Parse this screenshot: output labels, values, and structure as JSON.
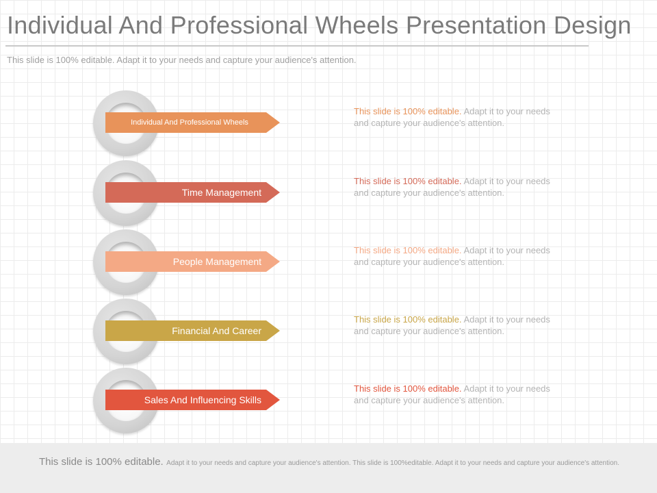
{
  "slide": {
    "title": "Individual And Professional Wheels Presentation Design",
    "subtitle": "This slide is 100% editable. Adapt it to your needs and capture your audience's attention."
  },
  "wheels": [
    {
      "label": "Individual And Professional Wheels",
      "color": "#e8935a",
      "desc_lead": "This slide is 100% editable.",
      "desc_rest": "Adapt it to your needs and capture your audience's attention."
    },
    {
      "label": "Time Management",
      "color": "#d46a58",
      "desc_lead": "This slide is 100% editable.",
      "desc_rest": "Adapt it to your needs and capture your audience's attention."
    },
    {
      "label": "People Management",
      "color": "#f4a985",
      "desc_lead": "This slide is 100% editable.",
      "desc_rest": "Adapt it to your needs and capture your audience's attention."
    },
    {
      "label": "Financial And Career",
      "color": "#c9a648",
      "desc_lead": "This slide is 100% editable.",
      "desc_rest": "Adapt it to your needs and capture your audience's attention."
    },
    {
      "label": "Sales And Influencing  Skills",
      "color": "#e2563e",
      "desc_lead": "This slide is 100% editable.",
      "desc_rest": "Adapt it to your needs and capture your audience's attention."
    }
  ],
  "footer": {
    "lead": "This slide is 100% editable.",
    "body": "Adapt it to your needs and capture your audience's attention. This slide is 100%editable. Adapt it to your needs and capture your audience's attention."
  }
}
